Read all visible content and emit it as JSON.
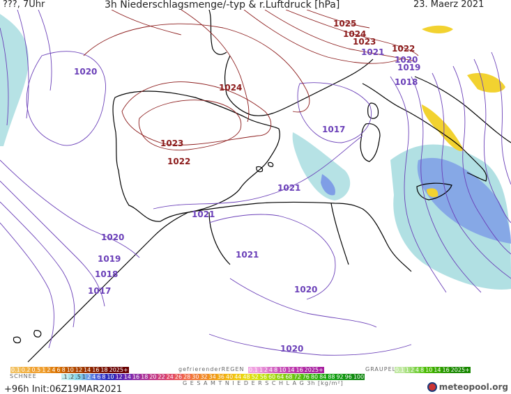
{
  "header": {
    "left": "???, 7Uhr",
    "title": "3h Niederschlagsmenge/-typ & r.Luftdruck [hPa]",
    "date": "23. Maerz 2021"
  },
  "isobars_red": [
    {
      "label": "1025"
    },
    {
      "label": "1024"
    },
    {
      "label": "1023"
    },
    {
      "label": "1022"
    },
    {
      "label": "1024"
    },
    {
      "label": "1023"
    },
    {
      "label": "1022"
    }
  ],
  "isobars_purple": [
    {
      "label": "1021"
    },
    {
      "label": "1020"
    },
    {
      "label": "1019"
    },
    {
      "label": "1018"
    },
    {
      "label": "1020"
    },
    {
      "label": "1017"
    },
    {
      "label": "1021"
    },
    {
      "label": "1021"
    },
    {
      "label": "1020"
    },
    {
      "label": "1019"
    },
    {
      "label": "1018"
    },
    {
      "label": "1017"
    },
    {
      "label": "1021"
    },
    {
      "label": "1020"
    },
    {
      "label": "1020"
    }
  ],
  "colors": {
    "isobar_high": "#8b1a1a",
    "isobar_low": "#6a3fb8",
    "rain": "#a9dde0",
    "snow_blue": "#7f9ee6",
    "graupel": "#f2d230",
    "coast": "#000000"
  },
  "legend": {
    "schnee_label": "SCHNEE",
    "regen_label": "gefrierenderREGEN",
    "graupel_label": "GRAUPEL",
    "gesamt_label": "G E S A M T N I E D E R S C H L A G   3h  [kg/m²]",
    "snow_scale": [
      "0.1",
      "0.2",
      "0.5",
      "1",
      "2",
      "4",
      "6",
      "8",
      "10",
      "12",
      "14",
      "16",
      "18",
      "2025+"
    ],
    "rain_scale": [
      ".1",
      ".2",
      ".5",
      "1",
      "2",
      "4",
      "6",
      "8",
      "10",
      "12",
      "14",
      "16",
      "18",
      "20",
      "22",
      "24",
      "26",
      "28",
      "30",
      "32",
      "34",
      "36",
      "40",
      "44",
      "48",
      "52",
      "56",
      "60",
      "64",
      "68",
      "72",
      "76",
      "80",
      "84",
      "88",
      "92",
      "96",
      "100"
    ],
    "freezing_scale": [
      "0.1",
      "1",
      "2",
      "4",
      "8",
      "10",
      "14",
      "16",
      "2025+"
    ],
    "graupel_scale": [
      "0.1",
      "1",
      "2",
      "4",
      "8",
      "10",
      "14",
      "16",
      "2025+"
    ]
  },
  "footer": {
    "init": "+96h  Init:06Z19MAR2021",
    "logo_text": "meteopool.org"
  }
}
